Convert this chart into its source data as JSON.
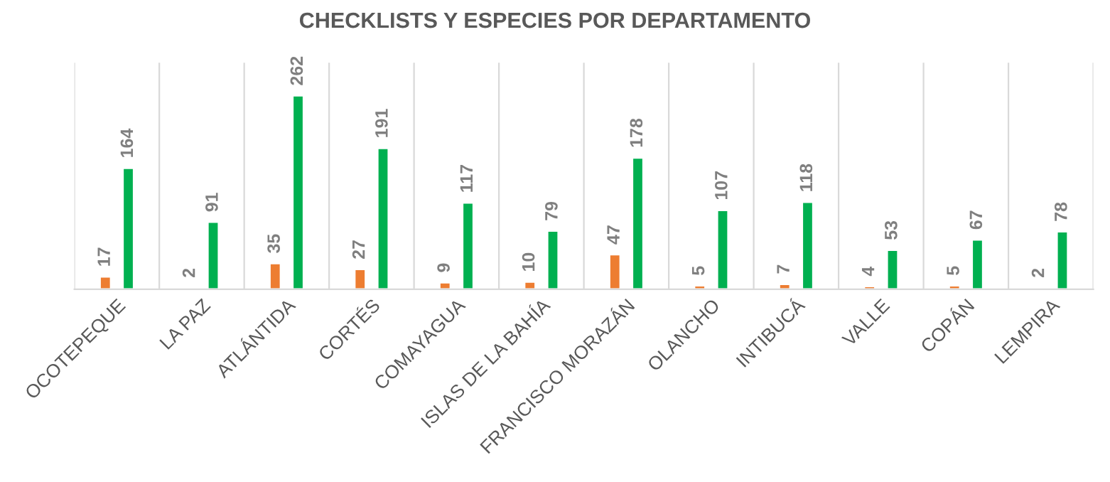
{
  "chart_data": {
    "type": "bar",
    "title": "CHECKLISTS Y ESPECIES POR DEPARTAMENTO",
    "categories": [
      "OCOTEPEQUE",
      "LA PAZ",
      "ATLÁNTIDA",
      "CORTÉS",
      "COMAYAGUA",
      "ISLAS DE LA BAHÍA",
      "FRANCISCO MORAZÁN",
      "OLANCHO",
      "INTIBUCÁ",
      "VALLE",
      "COPÁN",
      "LEMPIRA"
    ],
    "series": [
      {
        "color": "#ed7d31",
        "values": [
          17,
          2,
          35,
          27,
          9,
          10,
          47,
          5,
          7,
          4,
          5,
          2
        ]
      },
      {
        "color": "#00b050",
        "values": [
          164,
          91,
          262,
          191,
          117,
          79,
          178,
          107,
          118,
          53,
          67,
          78
        ]
      }
    ],
    "data_labels": true,
    "grid": "x",
    "legend": false,
    "tick_labels": "x"
  }
}
